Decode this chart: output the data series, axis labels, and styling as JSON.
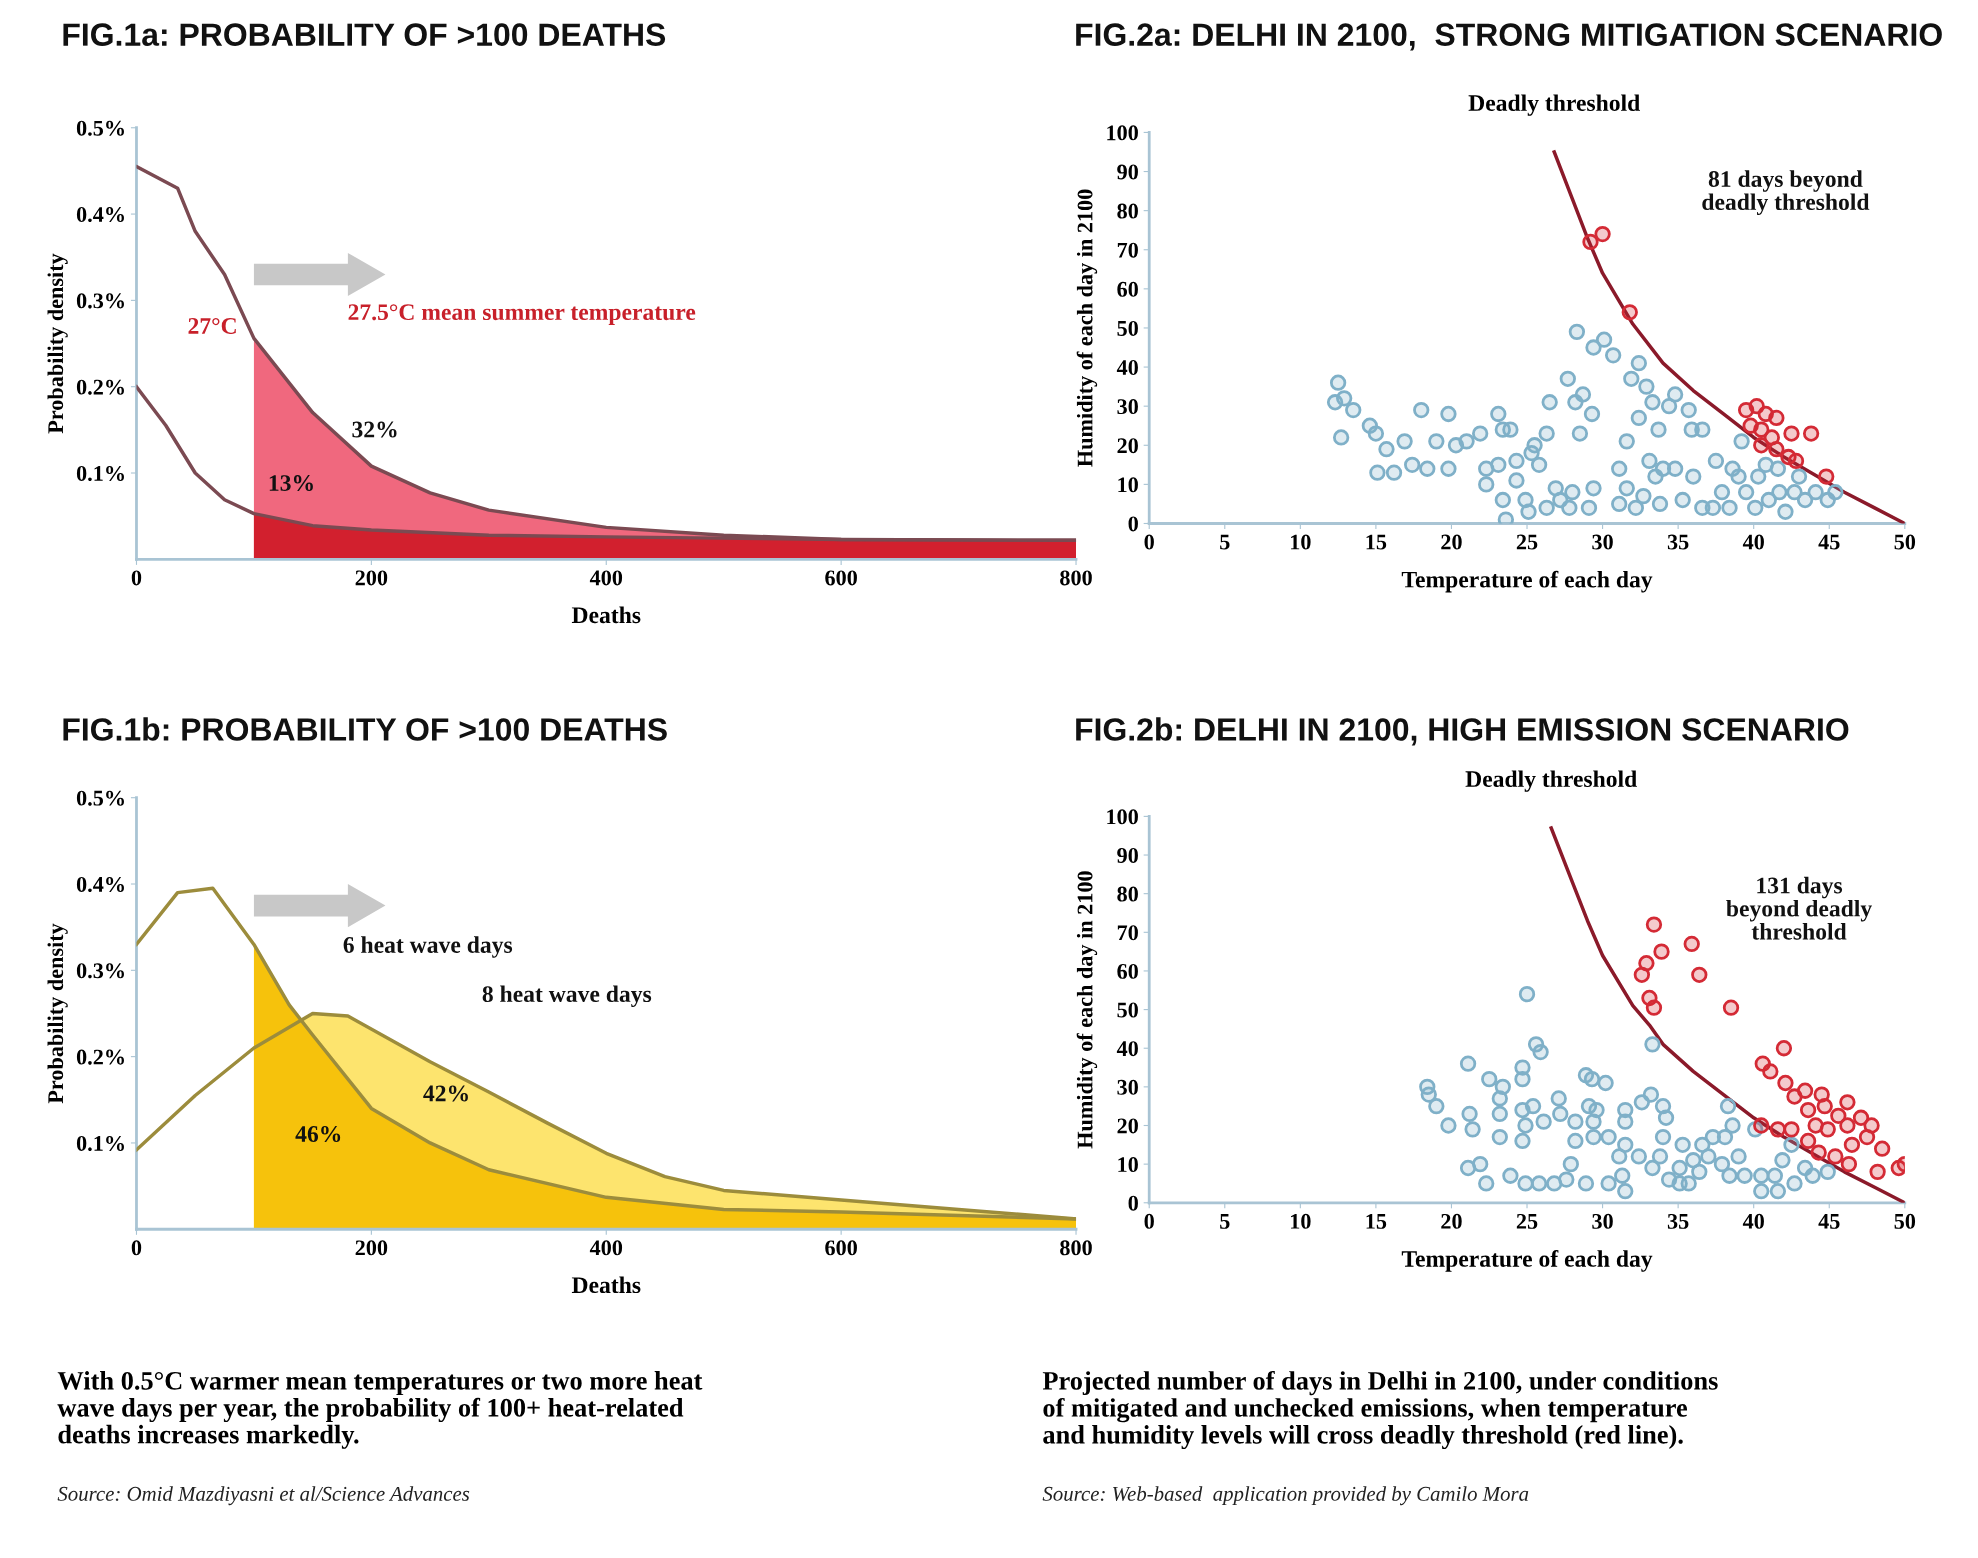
{
  "chart_data": [
    {
      "type": "line",
      "title": "FIG.1a: PROBABILITY OF >100 DEATHS",
      "xlabel": "Deaths",
      "ylabel": "Probability density",
      "xlim": [
        0,
        800
      ],
      "ylim": [
        0,
        0.5
      ],
      "xticks": [
        0,
        200,
        400,
        600,
        800
      ],
      "yticks": [
        {
          "value": 0.1,
          "label": "0.1%"
        },
        {
          "value": 0.2,
          "label": "0.2%"
        },
        {
          "value": 0.3,
          "label": "0.3%"
        },
        {
          "value": 0.4,
          "label": "0.4%"
        },
        {
          "value": 0.5,
          "label": "0.5%"
        }
      ],
      "series": [
        {
          "type": "area",
          "color": "#f0687e",
          "x": [
            100,
            150,
            200,
            250,
            300,
            400,
            500,
            600,
            800
          ],
          "values": [
            0.256,
            0.17,
            0.108,
            0.077,
            0.057,
            0.037,
            0.028,
            0.023,
            0.022
          ]
        },
        {
          "type": "area",
          "color": "#d2202e",
          "x": [
            100,
            150,
            200,
            300,
            400,
            600,
            800
          ],
          "values": [
            0.053,
            0.039,
            0.034,
            0.028,
            0.026,
            0.023,
            0.022
          ]
        },
        {
          "color": "#7b4a52",
          "x": [
            0,
            35,
            50,
            75,
            100,
            150,
            200,
            250,
            300,
            400,
            500,
            600,
            800
          ],
          "values": [
            0.455,
            0.43,
            0.38,
            0.33,
            0.256,
            0.17,
            0.108,
            0.077,
            0.057,
            0.037,
            0.028,
            0.023,
            0.022
          ]
        },
        {
          "color": "#7b4a52",
          "x": [
            0,
            25,
            50,
            75,
            100,
            150,
            200,
            300,
            400,
            600,
            800
          ],
          "values": [
            0.2,
            0.155,
            0.1,
            0.069,
            0.053,
            0.039,
            0.034,
            0.028,
            0.026,
            0.023,
            0.022
          ]
        }
      ],
      "annotations": [
        "27°C",
        "27.5°C mean summer temperature",
        "32%",
        "13%"
      ]
    },
    {
      "type": "line",
      "title": "FIG.1b: PROBABILITY OF >100 DEATHS",
      "xlabel": "Deaths",
      "ylabel": "Probability density",
      "xlim": [
        0,
        800
      ],
      "ylim": [
        0,
        0.5
      ],
      "xticks": [
        0,
        200,
        400,
        600,
        800
      ],
      "yticks": [
        {
          "value": 0.1,
          "label": "0.1%"
        },
        {
          "value": 0.2,
          "label": "0.2%"
        },
        {
          "value": 0.3,
          "label": "0.3%"
        },
        {
          "value": 0.4,
          "label": "0.4%"
        },
        {
          "value": 0.5,
          "label": "0.5%"
        }
      ],
      "series": [
        {
          "type": "area",
          "color": "#fde46e",
          "x": [
            100,
            150,
            180,
            250,
            300,
            350,
            400,
            450,
            500,
            600,
            700,
            800
          ],
          "values": [
            0.21,
            0.25,
            0.247,
            0.194,
            0.159,
            0.123,
            0.088,
            0.061,
            0.045,
            0.034,
            0.023,
            0.012
          ]
        },
        {
          "type": "area",
          "color": "#f6c20c",
          "x": [
            100,
            130,
            150,
            200,
            250,
            300,
            400,
            500,
            600,
            800
          ],
          "values": [
            0.33,
            0.26,
            0.225,
            0.14,
            0.1,
            0.069,
            0.037,
            0.023,
            0.02,
            0.012
          ]
        },
        {
          "color": "#9c8c3c",
          "x": [
            0,
            50,
            100,
            150,
            180,
            250,
            300,
            350,
            400,
            450,
            500,
            600,
            700,
            800
          ],
          "values": [
            0.092,
            0.155,
            0.21,
            0.25,
            0.247,
            0.194,
            0.159,
            0.123,
            0.088,
            0.061,
            0.045,
            0.034,
            0.023,
            0.012
          ]
        },
        {
          "color": "#9c8c3c",
          "x": [
            0,
            35,
            65,
            100,
            130,
            150,
            200,
            250,
            300,
            400,
            500,
            600,
            800
          ],
          "values": [
            0.33,
            0.39,
            0.395,
            0.33,
            0.26,
            0.225,
            0.14,
            0.1,
            0.069,
            0.037,
            0.023,
            0.02,
            0.012
          ]
        }
      ],
      "annotations": [
        "6 heat wave days",
        "8 heat wave days",
        "42%",
        "46%",
        "With 0.5°C warmer mean temperatures or two more heat\nwave days per year, the probability of 100+ heat-related\ndeaths increases markedly.",
        "Source: Omid Mazdiyasni et al/Science Advances"
      ]
    },
    {
      "type": "scatter",
      "title": "FIG.2a: DELHI IN 2100,  STRONG MITIGATION SCENARIO",
      "xlabel": "Temperature of each day",
      "ylabel": "Humidity of each day in 2100",
      "xlim": [
        0,
        50
      ],
      "ylim": [
        0,
        100
      ],
      "xticks": [
        0,
        5,
        10,
        15,
        20,
        25,
        30,
        35,
        40,
        45,
        50
      ],
      "yticks": [
        0,
        10,
        20,
        30,
        40,
        50,
        60,
        70,
        80,
        90,
        100
      ],
      "series": [
        {
          "type": "line",
          "name": "Deadly threshold",
          "color": "#8b1a2a",
          "x": [
            26.8,
            28,
            29,
            30,
            32,
            34,
            36,
            38,
            40,
            42,
            44,
            46,
            48,
            50
          ],
          "values": [
            95,
            83,
            73,
            64,
            51,
            41,
            34,
            28,
            22,
            17,
            12.5,
            8,
            4,
            0
          ]
        },
        {
          "marker": "circle",
          "color": "#7fb0c8",
          "x": [
            12.5,
            12.3,
            12.9,
            13.5,
            12.7,
            14.6,
            15,
            15.7,
            15.1,
            16.2,
            16.9,
            17.4,
            18,
            18.4,
            19,
            19.8,
            19.8,
            20.3,
            21,
            21.9,
            22.3,
            22.3,
            23.1,
            23.4,
            23.9,
            23.1,
            23.4,
            23.6,
            24.3,
            24.3,
            24.9,
            25.3,
            25.5,
            25.8,
            25.1,
            26.3,
            26.5,
            26.3,
            26.9,
            27.2,
            27.7,
            28.2,
            28.7,
            29.3,
            28.5,
            28,
            27.8,
            29.1,
            29.4,
            28.3,
            29.4,
            30.1,
            30.7,
            31.9,
            32.4,
            32.9,
            32.4,
            33.7,
            33.3,
            34.8,
            34.4,
            35.7,
            35.9,
            36.6,
            31.6,
            31.1,
            31.6,
            31.1,
            32.2,
            32.7,
            33.1,
            33.5,
            33.8,
            34,
            34.8,
            35.3,
            36,
            36.6,
            37.3,
            37.5,
            37.9,
            38.4,
            38.6,
            39.2,
            39,
            39.5,
            40.1,
            40.3,
            40.8,
            41,
            41.6,
            41.7,
            42.1,
            42.7,
            43,
            43.4,
            44.1,
            44.9,
            45.4
          ],
          "values": [
            36,
            31,
            32,
            29,
            22,
            25,
            23,
            19,
            13,
            13,
            21,
            15,
            29,
            14,
            21,
            28,
            14,
            20,
            21,
            23,
            14,
            10,
            28,
            24,
            24,
            15,
            6,
            1,
            16,
            11,
            6,
            18,
            20,
            15,
            3,
            23,
            31,
            4,
            9,
            6,
            37,
            31,
            33,
            28,
            23,
            8,
            4,
            4,
            9,
            49,
            45,
            47,
            43,
            37,
            41,
            35,
            27,
            24,
            31,
            33,
            30,
            29,
            24,
            24,
            21,
            14,
            9,
            5,
            4,
            7,
            16,
            12,
            5,
            14,
            14,
            6,
            12,
            4,
            4,
            16,
            8,
            4,
            14,
            21,
            12,
            8,
            4,
            12,
            15,
            6,
            14,
            8,
            3,
            8,
            12,
            6,
            8,
            6,
            8
          ]
        },
        {
          "marker": "circle",
          "color": "#d42a35",
          "x": [
            29.2,
            30,
            31.8,
            39.5,
            40.2,
            40.8,
            41.5,
            39.8,
            40.5,
            41.2,
            42.5,
            40.5,
            41.5,
            42.3,
            42.8,
            43.8,
            44.8
          ],
          "values": [
            72,
            74,
            54,
            29,
            30,
            28,
            27,
            25,
            24,
            22,
            23,
            20,
            19,
            17,
            16,
            23,
            12
          ]
        }
      ],
      "annotations": [
        "81 days beyond\ndeadly threshold"
      ]
    },
    {
      "type": "scatter",
      "title": "FIG.2b: DELHI IN 2100, HIGH EMISSION SCENARIO",
      "xlabel": "Temperature of each day",
      "ylabel": "Humidity of each day in 2100",
      "xlim": [
        0,
        50
      ],
      "ylim": [
        0,
        100
      ],
      "xticks": [
        0,
        5,
        10,
        15,
        20,
        25,
        30,
        35,
        40,
        45,
        50
      ],
      "yticks": [
        0,
        10,
        20,
        30,
        40,
        50,
        60,
        70,
        80,
        90,
        100
      ],
      "series": [
        {
          "type": "line",
          "name": "Deadly threshold",
          "color": "#8b1a2a",
          "x": [
            26.6,
            28,
            29,
            30,
            32,
            33.1,
            34,
            36,
            38,
            40,
            42,
            44,
            46,
            48,
            50
          ],
          "values": [
            97,
            83,
            73,
            64,
            51,
            46,
            41,
            34,
            28,
            22,
            17,
            12.5,
            8,
            4,
            0
          ]
        },
        {
          "marker": "circle",
          "color": "#7fb0c8",
          "x": [
            18.4,
            18.5,
            19,
            19.8,
            21.1,
            21.2,
            21.4,
            21.1,
            21.9,
            22.3,
            22.5,
            23.4,
            23.2,
            23.2,
            23.2,
            23.9,
            24.7,
            24.7,
            25,
            25.6,
            25.9,
            24.7,
            24.9,
            24.7,
            25.4,
            26.1,
            24.9,
            25.8,
            27.1,
            27.2,
            26.8,
            27.6,
            27.9,
            28.2,
            28.2,
            28.9,
            29.3,
            30.2,
            29.1,
            29.6,
            29.4,
            29.4,
            28.9,
            30.4,
            30.4,
            31.1,
            31.5,
            31.5,
            31.5,
            31.3,
            31.5,
            32.4,
            32.6,
            33.2,
            33.3,
            33.3,
            34,
            34.2,
            34,
            33.8,
            34.4,
            35.1,
            35.1,
            35.7,
            35.3,
            36,
            36.6,
            37,
            36.4,
            37.3,
            38.3,
            38.1,
            37.9,
            38.6,
            39,
            38.4,
            39.4,
            40.1,
            40.5,
            40.5,
            41.4,
            41.6,
            41.9,
            42.5,
            42.7,
            43.4,
            43.9,
            44.9
          ],
          "values": [
            30,
            28,
            25,
            20,
            36,
            23,
            19,
            9,
            10,
            5,
            32,
            30,
            27,
            23,
            17,
            7,
            35,
            32,
            54,
            41,
            39,
            24,
            20,
            16,
            25,
            21,
            5,
            5,
            27,
            23,
            5,
            6,
            10,
            21,
            16,
            33,
            32,
            31,
            25,
            24,
            21,
            17,
            5,
            17,
            5,
            12,
            24,
            21,
            15,
            7,
            3,
            12,
            26,
            28,
            41,
            9,
            25,
            22,
            17,
            12,
            6,
            9,
            5,
            5,
            15,
            11,
            15,
            12,
            8,
            17,
            25,
            17,
            10,
            20,
            12,
            7,
            7,
            19,
            7,
            3,
            7,
            3,
            11,
            15,
            5,
            9,
            7,
            8
          ]
        },
        {
          "marker": "circle",
          "color": "#d42a35",
          "x": [
            33.4,
            33.9,
            32.9,
            32.6,
            33.1,
            33.4,
            35.9,
            36.4,
            38.5,
            42,
            40.6,
            41.1,
            42.1,
            42.7,
            43.4,
            42.7,
            44.5,
            44.7,
            43.6,
            46.2,
            45.6,
            40.5,
            41.6,
            42.5,
            44.1,
            44.9,
            46.2,
            47.1,
            47.8,
            47.5,
            43.6,
            44.3,
            45.4,
            46.5,
            46.3,
            48.5,
            48.2,
            49.6,
            50
          ],
          "values": [
            72,
            65,
            62,
            59,
            53,
            50.5,
            67,
            59,
            50.5,
            40,
            36,
            34,
            31,
            null,
            29,
            27.5,
            28,
            25,
            24,
            26,
            22.5,
            20,
            19,
            19,
            20,
            19,
            20,
            22,
            20,
            17,
            16,
            13,
            12,
            15,
            10,
            14,
            8,
            9,
            10
          ]
        }
      ],
      "annotations": [
        "131 days\nbeyond deadly\nthreshold",
        "Projected number of days in Delhi in 2100, under conditions\nof mitigated and unchecked emissions, when temperature\nand humidity levels will cross deadly threshold (red line).",
        "Source: Web-based  application provided by Camilo Mora"
      ]
    }
  ]
}
